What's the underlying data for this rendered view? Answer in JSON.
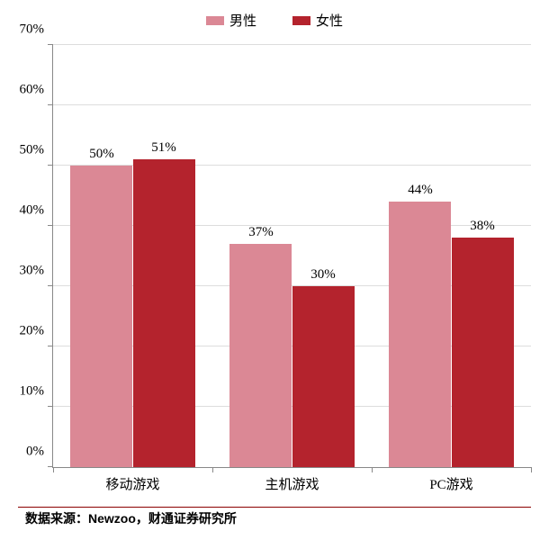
{
  "chart": {
    "type": "bar",
    "background_color": "#ffffff",
    "grid_color": "#dddddd",
    "axis_color": "#888888",
    "text_color": "#000000",
    "series": [
      {
        "label": "男性",
        "color": "#db8895"
      },
      {
        "label": "女性",
        "color": "#b4232d"
      }
    ],
    "categories": [
      "移动游戏",
      "主机游戏",
      "PC游戏"
    ],
    "data": [
      {
        "male": 50,
        "female": 51,
        "male_label": "50%",
        "female_label": "51%"
      },
      {
        "male": 37,
        "female": 30,
        "male_label": "37%",
        "female_label": "30%"
      },
      {
        "male": 44,
        "female": 38,
        "male_label": "44%",
        "female_label": "38%"
      }
    ],
    "ylim": [
      0,
      70
    ],
    "ytick_step": 10,
    "y_format": "percent",
    "label_fontsize": 15,
    "legend_fontsize": 15,
    "legend_position": "top",
    "bar_width_ratio": 0.13,
    "group_gap_ratio": 0.0
  },
  "source": {
    "label": "数据来源：Newzoo，财通证券研究所",
    "divider_color": "#8B0000",
    "fontsize": 14
  }
}
